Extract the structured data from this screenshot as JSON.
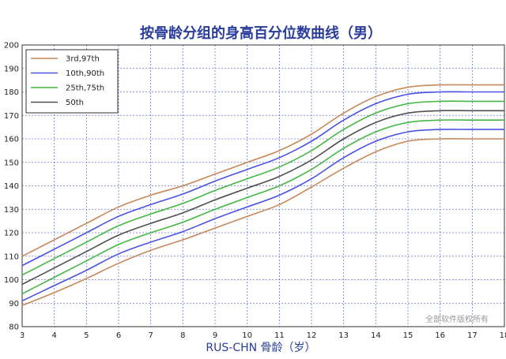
{
  "chart_data": {
    "type": "line",
    "title": "按骨龄分组的身高百分位数曲线（男）",
    "xlabel": "RUS-CHN 骨龄（岁）",
    "ylabel": "",
    "xlim": [
      3,
      18
    ],
    "ylim": [
      80,
      200
    ],
    "xticks": [
      3,
      4,
      5,
      6,
      7,
      8,
      9,
      10,
      11,
      12,
      13,
      14,
      15,
      16,
      17,
      18
    ],
    "xtick_labels": [
      "3",
      "4",
      "5",
      "6",
      "7",
      "8",
      "9",
      "10",
      "11",
      "12",
      "13",
      "14",
      "15",
      "16",
      "17",
      "18"
    ],
    "yticks": [
      80,
      90,
      100,
      110,
      120,
      130,
      140,
      150,
      160,
      170,
      180,
      190,
      200
    ],
    "ytick_labels": [
      "80",
      "90",
      "100",
      "110",
      "120",
      "130",
      "140",
      "150",
      "160",
      "170",
      "180",
      "190",
      "200"
    ],
    "grid": true,
    "legend_position": "top-left",
    "legend": [
      {
        "label": "3rd,97th",
        "color": "#c8885a"
      },
      {
        "label": "10th,90th",
        "color": "#4a52e6"
      },
      {
        "label": "25th,75th",
        "color": "#44b844"
      },
      {
        "label": "50th",
        "color": "#505050"
      }
    ],
    "x": [
      3,
      4,
      5,
      6,
      7,
      8,
      9,
      10,
      11,
      12,
      13,
      14,
      15,
      16,
      17,
      18
    ],
    "series": [
      {
        "color": "#c8885a",
        "values": [
          110,
          117,
          124,
          131,
          136,
          140,
          145,
          150,
          155,
          162,
          171,
          178,
          182,
          183,
          183,
          183
        ]
      },
      {
        "color": "#4a52e6",
        "values": [
          106,
          113,
          120,
          127,
          132,
          136.5,
          142,
          147,
          152,
          159,
          168,
          175,
          179,
          180,
          180,
          180
        ]
      },
      {
        "color": "#44b844",
        "values": [
          102,
          109,
          116,
          123,
          128,
          132.5,
          138,
          143,
          148,
          155,
          164,
          171,
          175,
          176,
          176,
          176
        ]
      },
      {
        "color": "#505050",
        "values": [
          98,
          105,
          112,
          119,
          124,
          128.5,
          134,
          139,
          144,
          151,
          160,
          167,
          171,
          172,
          172,
          172
        ]
      },
      {
        "color": "#44b844",
        "values": [
          94,
          101,
          108,
          115,
          120,
          124.5,
          130,
          135,
          140,
          147,
          156,
          163,
          167,
          168,
          168,
          168
        ]
      },
      {
        "color": "#4a52e6",
        "values": [
          91,
          97.5,
          104,
          111,
          116,
          120.5,
          126,
          131,
          136,
          143,
          152,
          159,
          163,
          164,
          164,
          164
        ]
      },
      {
        "color": "#c8885a",
        "values": [
          89,
          94.5,
          100.5,
          107,
          112.5,
          117,
          122,
          127,
          132,
          139.5,
          147.5,
          154.5,
          159,
          160,
          160,
          160
        ]
      }
    ]
  },
  "watermark": "全部软件版权所有"
}
